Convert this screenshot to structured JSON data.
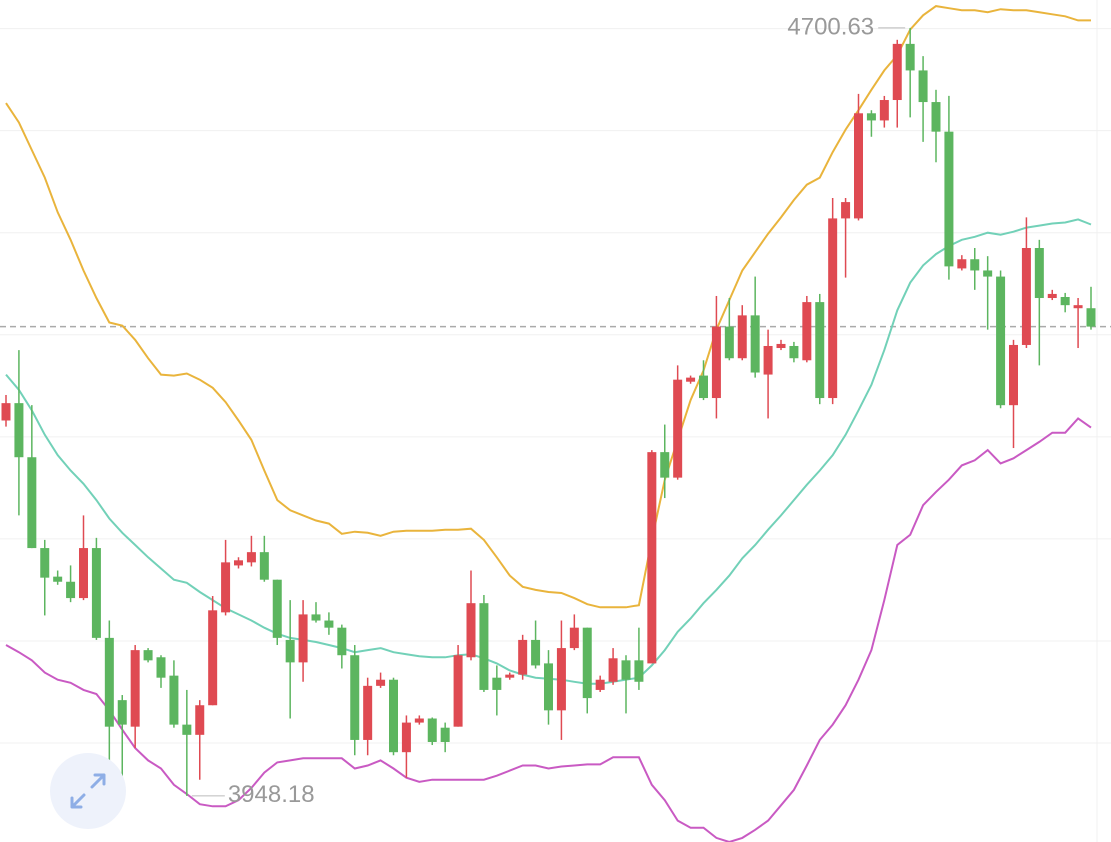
{
  "chart_data": {
    "type": "candlestick",
    "open": [
      4316,
      4333,
      4280,
      4191,
      4163,
      4158,
      4142,
      4191,
      4103,
      4042,
      4016,
      4091,
      4084,
      4066,
      4018,
      4008,
      4037,
      4128,
      4174,
      4177,
      4187,
      4160,
      4101,
      4079,
      4126,
      4120,
      4113,
      4086,
      4003,
      4056,
      4062,
      3991,
      4020,
      4024,
      4015,
      4016,
      4084,
      4137,
      4064,
      4064,
      4067,
      4101,
      4078,
      4032,
      4093,
      4113,
      4052,
      4060,
      4081,
      4081,
      4078,
      4285,
      4260,
      4354,
      4360,
      4338,
      4408,
      4377,
      4419,
      4361,
      4387,
      4389,
      4375,
      4432,
      4338,
      4514,
      4514,
      4617,
      4610,
      4630,
      4685,
      4659,
      4628,
      4599,
      4465,
      4474,
      4463,
      4457,
      4331,
      4390,
      4485,
      4436,
      4437,
      4426,
      4426
    ],
    "high": [
      4341,
      4385,
      4331,
      4199,
      4169,
      4174,
      4223,
      4201,
      4120,
      4047,
      4096,
      4093,
      4086,
      4081,
      4052,
      4042,
      4144,
      4199,
      4182,
      4203,
      4203,
      4160,
      4140,
      4140,
      4138,
      4128,
      4116,
      4096,
      4064,
      4069,
      4064,
      4027,
      4027,
      4025,
      4020,
      4096,
      4169,
      4145,
      4076,
      4069,
      4106,
      4120,
      4091,
      4120,
      4126,
      4113,
      4066,
      4093,
      4086,
      4113,
      4287,
      4312,
      4370,
      4360,
      4375,
      4438,
      4436,
      4429,
      4457,
      4405,
      4395,
      4393,
      4438,
      4440,
      4534,
      4534,
      4636,
      4620,
      4634,
      4689,
      4700.63,
      4673,
      4640,
      4634,
      4478,
      4485,
      4477,
      4463,
      4395,
      4515,
      4493,
      4444,
      4441,
      4436,
      4447
    ],
    "low": [
      4310,
      4223,
      4191,
      4125,
      4155,
      4138,
      4140,
      4101,
      3967,
      3967,
      3995,
      4079,
      4054,
      4015,
      3948.18,
      3964,
      4037,
      4125,
      4171,
      4173,
      4158,
      4096,
      4024,
      4060,
      4118,
      4106,
      4073,
      3988,
      3988,
      4054,
      3988,
      3966,
      4018,
      3998,
      3991,
      4016,
      4081,
      4050,
      4027,
      4062,
      4062,
      4073,
      4018,
      4003,
      4091,
      4029,
      4050,
      4057,
      4029,
      4052,
      4078,
      4240,
      4258,
      4352,
      4336,
      4318,
      4375,
      4375,
      4358,
      4318,
      4385,
      4373,
      4373,
      4332,
      4332,
      4456,
      4512,
      4594,
      4603,
      4603,
      4613,
      4589,
      4569,
      4454,
      4463,
      4444,
      4405,
      4328,
      4289,
      4387,
      4370,
      4434,
      4422,
      4387,
      4405
    ],
    "close": [
      4333,
      4280,
      4191,
      4162,
      4158,
      4142,
      4191,
      4103,
      4016,
      4018,
      4091,
      4081,
      4064,
      4018,
      4008,
      4037,
      4130,
      4177,
      4179,
      4187,
      4160,
      4103,
      4079,
      4126,
      4120,
      4113,
      4086,
      4003,
      4056,
      4062,
      3991,
      4020,
      4024,
      4001,
      4001,
      4086,
      4137,
      4052,
      4052,
      4067,
      4101,
      4076,
      4032,
      4093,
      4113,
      4044,
      4062,
      4083,
      4062,
      4060,
      4285,
      4260,
      4356,
      4358,
      4338,
      4408,
      4377,
      4419,
      4363,
      4389,
      4391,
      4377,
      4432,
      4338,
      4514,
      4530,
      4617,
      4610,
      4630,
      4685,
      4659,
      4628,
      4599,
      4467,
      4474,
      4463,
      4457,
      4331,
      4390,
      4485,
      4436,
      4440,
      4429,
      4429,
      4408
    ],
    "up_color": "#df4a52",
    "down_color": "#5cb55f",
    "bands": [
      {
        "color": "#e9b43c",
        "values": [
          4627,
          4608,
          4581,
          4554,
          4520,
          4493,
          4463,
          4436,
          4412,
          4409,
          4395,
          4377,
          4361,
          4360,
          4362,
          4356,
          4348,
          4334,
          4316,
          4297,
          4267,
          4238,
          4228,
          4223,
          4218,
          4215,
          4205,
          4207,
          4206,
          4203,
          4207,
          4208,
          4208,
          4208,
          4209,
          4209,
          4210,
          4199,
          4182,
          4164,
          4153,
          4150,
          4148,
          4147,
          4142,
          4136,
          4133,
          4133,
          4133,
          4135,
          4199,
          4258,
          4297,
          4336,
          4365,
          4405,
          4434,
          4463,
          4481,
          4499,
          4515,
          4532,
          4547,
          4554,
          4579,
          4601,
          4620,
          4640,
          4659,
          4674,
          4699,
          4713,
          4722,
          4720,
          4718,
          4718,
          4716,
          4719,
          4718,
          4718,
          4716,
          4714,
          4712,
          4708,
          4708
        ]
      },
      {
        "color": "#72d1b8",
        "values": [
          4361,
          4346,
          4326,
          4302,
          4282,
          4267,
          4254,
          4238,
          4220,
          4206,
          4194,
          4182,
          4171,
          4160,
          4157,
          4148,
          4140,
          4132,
          4126,
          4120,
          4113,
          4107,
          4103,
          4101,
          4099,
          4096,
          4093,
          4089,
          4091,
          4093,
          4089,
          4087,
          4085,
          4084,
          4084,
          4086,
          4087,
          4083,
          4078,
          4071,
          4067,
          4064,
          4063,
          4062,
          4060,
          4058,
          4058,
          4060,
          4062,
          4064,
          4076,
          4091,
          4109,
          4122,
          4137,
          4150,
          4164,
          4181,
          4194,
          4209,
          4223,
          4238,
          4253,
          4267,
          4282,
          4302,
          4326,
          4351,
          4385,
          4424,
          4451,
          4468,
          4479,
          4487,
          4493,
          4496,
          4500,
          4498,
          4501,
          4505,
          4507,
          4509,
          4510,
          4513,
          4508
        ]
      },
      {
        "color": "#c95ac3",
        "values": [
          4096,
          4089,
          4081,
          4069,
          4062,
          4059,
          4052,
          4048,
          4032,
          4013,
          3995,
          3983,
          3975,
          3959,
          3950,
          3940,
          3938,
          3938,
          3944,
          3956,
          3971,
          3981,
          3983,
          3985,
          3985,
          3985,
          3985,
          3975,
          3978,
          3983,
          3975,
          3966,
          3962,
          3964,
          3964,
          3964,
          3964,
          3964,
          3968,
          3973,
          3978,
          3978,
          3975,
          3977,
          3978,
          3979,
          3979,
          3986,
          3986,
          3986,
          3959,
          3944,
          3924,
          3917,
          3917,
          3907,
          3903,
          3907,
          3915,
          3924,
          3939,
          3954,
          3978,
          4003,
          4018,
          4037,
          4062,
          4091,
          4140,
          4194,
          4204,
          4233,
          4246,
          4258,
          4272,
          4277,
          4287,
          4274,
          4279,
          4287,
          4295,
          4304,
          4304,
          4318,
          4309
        ]
      }
    ],
    "last_price": 4408,
    "ylim": [
      3903,
      4728
    ],
    "yticks": [
      4000,
      4100,
      4200,
      4300,
      4400,
      4500,
      4600,
      4700
    ],
    "grid": true
  }
}
